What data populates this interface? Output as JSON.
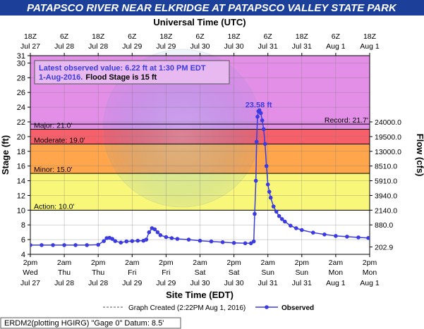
{
  "title": "PATAPSCO RIVER NEAR ELKRIDGE AT PATAPSCO VALLEY STATE PARK",
  "top_axis_title": "Universal Time (UTC)",
  "bottom_axis_title": "Site Time (EDT)",
  "left_axis_title": "Stage (ft)",
  "right_axis_title": "Flow (cfs)",
  "info_box": {
    "line1": "Latest observed value: 6.22 ft at 1:30 PM EDT",
    "line2_prefix": "1-Aug-2016.",
    "line2_flood": "Flood Stage is 15 ft"
  },
  "legend": {
    "graph_created": "Graph Created (2:22PM Aug 1, 2016)",
    "observed": "Observed"
  },
  "footer": "ERDM2(plotting HGIRG) \"Gage 0\" Datum: 8.5'",
  "colors": {
    "title_bg": "#1c3f9a",
    "record_band": "#e38fe8",
    "major_band": "#f7606a",
    "moderate_band": "#ffa64c",
    "minor_band": "#f8f77a",
    "series": "#3b3be0"
  },
  "chart_data": {
    "type": "line",
    "y_range": [
      4,
      31
    ],
    "y_ticks": [
      4,
      6,
      8,
      10,
      12,
      14,
      16,
      18,
      20,
      22,
      24,
      26,
      28,
      30,
      31
    ],
    "right_ticks": [
      {
        "stage": 5,
        "label": "202.9"
      },
      {
        "stage": 8,
        "label": "880.0"
      },
      {
        "stage": 10,
        "label": "2140.0"
      },
      {
        "stage": 12,
        "label": "3940.0"
      },
      {
        "stage": 14,
        "label": "5910.0"
      },
      {
        "stage": 16,
        "label": "8510.0"
      },
      {
        "stage": 18,
        "label": "13000.0"
      },
      {
        "stage": 20,
        "label": "19500.0"
      },
      {
        "stage": 22,
        "label": "24000.0"
      }
    ],
    "x_range": [
      "2016-07-27T14:00",
      "2016-08-01T14:00"
    ],
    "bottom_ticks": [
      {
        "t": "2016-07-27T14:00",
        "l1": "2pm",
        "l2": "Wed",
        "l3": "Jul 27"
      },
      {
        "t": "2016-07-28T02:00",
        "l1": "2am",
        "l2": "Thu",
        "l3": "Jul 28"
      },
      {
        "t": "2016-07-28T14:00",
        "l1": "2pm",
        "l2": "Thu",
        "l3": "Jul 28"
      },
      {
        "t": "2016-07-29T02:00",
        "l1": "2am",
        "l2": "Fri",
        "l3": "Jul 29"
      },
      {
        "t": "2016-07-29T14:00",
        "l1": "2pm",
        "l2": "Fri",
        "l3": "Jul 29"
      },
      {
        "t": "2016-07-30T02:00",
        "l1": "2am",
        "l2": "Sat",
        "l3": "Jul 30"
      },
      {
        "t": "2016-07-30T14:00",
        "l1": "2pm",
        "l2": "Sat",
        "l3": "Jul 30"
      },
      {
        "t": "2016-07-31T02:00",
        "l1": "2am",
        "l2": "Sun",
        "l3": "Jul 31"
      },
      {
        "t": "2016-07-31T14:00",
        "l1": "2pm",
        "l2": "Sun",
        "l3": "Jul 31"
      },
      {
        "t": "2016-08-01T02:00",
        "l1": "2am",
        "l2": "Mon",
        "l3": "Aug 1"
      },
      {
        "t": "2016-08-01T14:00",
        "l1": "2pm",
        "l2": "Mon",
        "l3": "Aug 1"
      }
    ],
    "top_ticks": [
      {
        "t": "2016-07-27T14:00",
        "l1": "18Z",
        "l2": "Jul 27"
      },
      {
        "t": "2016-07-28T02:00",
        "l1": "6Z",
        "l2": "Jul 28"
      },
      {
        "t": "2016-07-28T14:00",
        "l1": "18Z",
        "l2": "Jul 28"
      },
      {
        "t": "2016-07-29T02:00",
        "l1": "6Z",
        "l2": "Jul 29"
      },
      {
        "t": "2016-07-29T14:00",
        "l1": "18Z",
        "l2": "Jul 29"
      },
      {
        "t": "2016-07-30T02:00",
        "l1": "6Z",
        "l2": "Jul 30"
      },
      {
        "t": "2016-07-30T14:00",
        "l1": "18Z",
        "l2": "Jul 30"
      },
      {
        "t": "2016-07-31T02:00",
        "l1": "6Z",
        "l2": "Jul 31"
      },
      {
        "t": "2016-07-31T14:00",
        "l1": "18Z",
        "l2": "Jul 31"
      },
      {
        "t": "2016-08-01T02:00",
        "l1": "6Z",
        "l2": "Aug 1"
      },
      {
        "t": "2016-08-01T14:00",
        "l1": "18Z",
        "l2": "Aug 1"
      }
    ],
    "thresholds": [
      {
        "name": "Action",
        "label": "Action: 10.0'",
        "stage": 10
      },
      {
        "name": "Minor",
        "label": "Minor: 15.0'",
        "stage": 15
      },
      {
        "name": "Moderate",
        "label": "Moderate: 19.0'",
        "stage": 19
      },
      {
        "name": "Major",
        "label": "Major: 21.0'",
        "stage": 21
      }
    ],
    "record": {
      "label": "Record: 21.7'",
      "stage": 21.7
    },
    "peak": {
      "label": "23.58 ft",
      "t": "2016-07-30T23:00",
      "stage": 23.58
    },
    "series": [
      {
        "name": "Observed",
        "points": [
          [
            "2016-07-27T14:00",
            5.25
          ],
          [
            "2016-07-27T18:00",
            5.25
          ],
          [
            "2016-07-27T22:00",
            5.25
          ],
          [
            "2016-07-28T02:00",
            5.25
          ],
          [
            "2016-07-28T06:00",
            5.25
          ],
          [
            "2016-07-28T10:00",
            5.25
          ],
          [
            "2016-07-28T14:00",
            5.3
          ],
          [
            "2016-07-28T16:00",
            5.8
          ],
          [
            "2016-07-28T17:00",
            6.2
          ],
          [
            "2016-07-28T18:00",
            6.25
          ],
          [
            "2016-07-28T19:00",
            6.1
          ],
          [
            "2016-07-28T20:00",
            5.8
          ],
          [
            "2016-07-28T22:00",
            5.6
          ],
          [
            "2016-07-29T00:00",
            5.75
          ],
          [
            "2016-07-29T02:00",
            5.8
          ],
          [
            "2016-07-29T04:00",
            5.85
          ],
          [
            "2016-07-29T06:00",
            5.85
          ],
          [
            "2016-07-29T07:00",
            6.0
          ],
          [
            "2016-07-29T08:00",
            7.0
          ],
          [
            "2016-07-29T09:00",
            7.55
          ],
          [
            "2016-07-29T10:00",
            7.4
          ],
          [
            "2016-07-29T11:00",
            7.0
          ],
          [
            "2016-07-29T12:00",
            6.6
          ],
          [
            "2016-07-29T14:00",
            6.35
          ],
          [
            "2016-07-29T16:00",
            6.2
          ],
          [
            "2016-07-29T18:00",
            6.1
          ],
          [
            "2016-07-29T22:00",
            6.0
          ],
          [
            "2016-07-30T02:00",
            5.85
          ],
          [
            "2016-07-30T06:00",
            5.75
          ],
          [
            "2016-07-30T10:00",
            5.65
          ],
          [
            "2016-07-30T14:00",
            5.55
          ],
          [
            "2016-07-30T18:00",
            5.5
          ],
          [
            "2016-07-30T20:00",
            5.5
          ],
          [
            "2016-07-30T21:00",
            5.75
          ],
          [
            "2016-07-30T21:20",
            9.5
          ],
          [
            "2016-07-30T21:45",
            14.0
          ],
          [
            "2016-07-30T22:00",
            19.3
          ],
          [
            "2016-07-30T22:20",
            22.7
          ],
          [
            "2016-07-30T22:40",
            23.45
          ],
          [
            "2016-07-30T23:00",
            23.58
          ],
          [
            "2016-07-30T23:30",
            23.2
          ],
          [
            "2016-07-31T00:00",
            22.2
          ],
          [
            "2016-07-31T00:30",
            21.0
          ],
          [
            "2016-07-31T01:00",
            19.0
          ],
          [
            "2016-07-31T01:30",
            16.0
          ],
          [
            "2016-07-31T02:00",
            13.5
          ],
          [
            "2016-07-31T02:30",
            12.5
          ],
          [
            "2016-07-31T03:00",
            11.7
          ],
          [
            "2016-07-31T04:00",
            10.5
          ],
          [
            "2016-07-31T05:00",
            9.8
          ],
          [
            "2016-07-31T06:00",
            9.2
          ],
          [
            "2016-07-31T07:00",
            8.8
          ],
          [
            "2016-07-31T08:00",
            8.45
          ],
          [
            "2016-07-31T10:00",
            7.9
          ],
          [
            "2016-07-31T12:00",
            7.55
          ],
          [
            "2016-07-31T14:00",
            7.3
          ],
          [
            "2016-07-31T18:00",
            6.95
          ],
          [
            "2016-07-31T22:00",
            6.7
          ],
          [
            "2016-08-01T02:00",
            6.5
          ],
          [
            "2016-08-01T06:00",
            6.4
          ],
          [
            "2016-08-01T10:00",
            6.3
          ],
          [
            "2016-08-01T13:30",
            6.22
          ]
        ]
      }
    ]
  }
}
